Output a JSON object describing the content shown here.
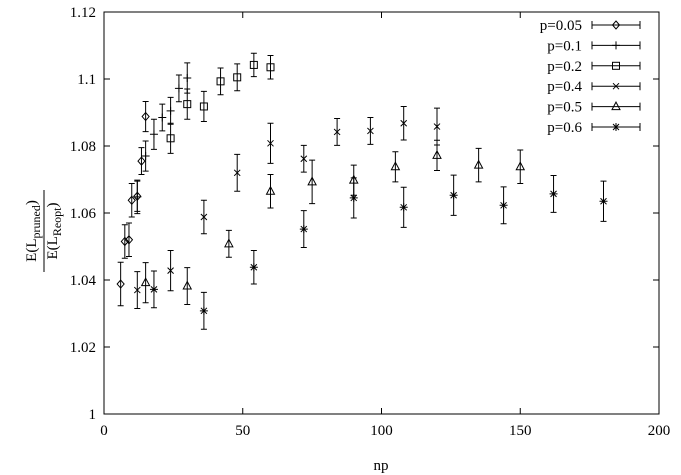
{
  "chart_data": {
    "type": "scatter",
    "title": "",
    "xlabel": "np",
    "ylabel": {
      "numerator": "E(L",
      "numerator_sub": "pruned",
      "denominator": "E(L",
      "denominator_sub": "Reopt",
      "close": ")"
    },
    "xlim": [
      0,
      200
    ],
    "ylim": [
      1,
      1.12
    ],
    "xticks": [
      "0",
      "50",
      "100",
      "150",
      "200"
    ],
    "yticks": [
      "1",
      "1.02",
      "1.04",
      "1.06",
      "1.08",
      "1.1",
      "1.12"
    ],
    "grid": false,
    "legend_position": "top-right",
    "series": [
      {
        "name": "p=0.05",
        "marker": "diamond",
        "points": [
          {
            "x": 6,
            "y": 1.0388,
            "err": 0.0065
          },
          {
            "x": 7.5,
            "y": 1.0515,
            "err": 0.005
          },
          {
            "x": 9,
            "y": 1.052,
            "err": 0.005
          },
          {
            "x": 10,
            "y": 1.0638,
            "err": 0.005
          },
          {
            "x": 12,
            "y": 1.065,
            "err": 0.0045
          },
          {
            "x": 13.5,
            "y": 1.0755,
            "err": 0.004
          },
          {
            "x": 15,
            "y": 1.0888,
            "err": 0.0045
          }
        ]
      },
      {
        "name": "p=0.1",
        "marker": "plus",
        "points": [
          {
            "x": 12,
            "y": 1.0648,
            "err": 0.005
          },
          {
            "x": 15,
            "y": 1.077,
            "err": 0.0045
          },
          {
            "x": 18,
            "y": 1.0835,
            "err": 0.0045
          },
          {
            "x": 21,
            "y": 1.0885,
            "err": 0.004
          },
          {
            "x": 24,
            "y": 1.0905,
            "err": 0.004
          },
          {
            "x": 27,
            "y": 1.0972,
            "err": 0.004
          },
          {
            "x": 30,
            "y": 1.1003,
            "err": 0.0045
          }
        ]
      },
      {
        "name": "p=0.2",
        "marker": "square",
        "points": [
          {
            "x": 24,
            "y": 1.0823,
            "err": 0.0045
          },
          {
            "x": 30,
            "y": 1.0925,
            "err": 0.0045
          },
          {
            "x": 36,
            "y": 1.0918,
            "err": 0.0045
          },
          {
            "x": 42,
            "y": 1.0993,
            "err": 0.004
          },
          {
            "x": 48,
            "y": 1.1005,
            "err": 0.004
          },
          {
            "x": 54,
            "y": 1.1042,
            "err": 0.0035
          },
          {
            "x": 60,
            "y": 1.1035,
            "err": 0.0035
          }
        ]
      },
      {
        "name": "p=0.4",
        "marker": "cross",
        "points": [
          {
            "x": 12,
            "y": 1.037,
            "err": 0.0055
          },
          {
            "x": 24,
            "y": 1.0428,
            "err": 0.006
          },
          {
            "x": 36,
            "y": 1.0588,
            "err": 0.005
          },
          {
            "x": 48,
            "y": 1.072,
            "err": 0.0055
          },
          {
            "x": 60,
            "y": 1.0808,
            "err": 0.006
          },
          {
            "x": 72,
            "y": 1.0762,
            "err": 0.004
          },
          {
            "x": 84,
            "y": 1.0842,
            "err": 0.004
          },
          {
            "x": 96,
            "y": 1.0845,
            "err": 0.004
          },
          {
            "x": 108,
            "y": 1.0868,
            "err": 0.005
          },
          {
            "x": 120,
            "y": 1.0858,
            "err": 0.0055
          }
        ]
      },
      {
        "name": "p=0.5",
        "marker": "triangle",
        "points": [
          {
            "x": 15,
            "y": 1.0392,
            "err": 0.006
          },
          {
            "x": 30,
            "y": 1.0382,
            "err": 0.0055
          },
          {
            "x": 45,
            "y": 1.0508,
            "err": 0.004
          },
          {
            "x": 60,
            "y": 1.0665,
            "err": 0.005
          },
          {
            "x": 75,
            "y": 1.0693,
            "err": 0.0065
          },
          {
            "x": 90,
            "y": 1.0698,
            "err": 0.0045
          },
          {
            "x": 105,
            "y": 1.0738,
            "err": 0.0045
          },
          {
            "x": 120,
            "y": 1.0772,
            "err": 0.0045
          },
          {
            "x": 135,
            "y": 1.0743,
            "err": 0.005
          },
          {
            "x": 150,
            "y": 1.0738,
            "err": 0.005
          }
        ]
      },
      {
        "name": "p=0.6",
        "marker": "star",
        "points": [
          {
            "x": 18,
            "y": 1.0372,
            "err": 0.0055
          },
          {
            "x": 36,
            "y": 1.0308,
            "err": 0.0055
          },
          {
            "x": 54,
            "y": 1.0438,
            "err": 0.005
          },
          {
            "x": 72,
            "y": 1.0552,
            "err": 0.0055
          },
          {
            "x": 90,
            "y": 1.0645,
            "err": 0.006
          },
          {
            "x": 108,
            "y": 1.0617,
            "err": 0.006
          },
          {
            "x": 126,
            "y": 1.0653,
            "err": 0.006
          },
          {
            "x": 144,
            "y": 1.0623,
            "err": 0.0055
          },
          {
            "x": 162,
            "y": 1.0657,
            "err": 0.0055
          },
          {
            "x": 180,
            "y": 1.0635,
            "err": 0.006
          }
        ]
      }
    ]
  }
}
